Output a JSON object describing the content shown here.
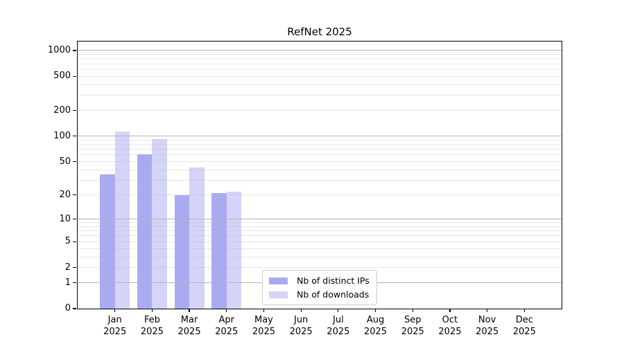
{
  "chart_data": {
    "type": "bar",
    "title": "RefNet 2025",
    "categories": [
      "Jan",
      "Feb",
      "Mar",
      "Apr",
      "May",
      "Jun",
      "Jul",
      "Aug",
      "Sep",
      "Oct",
      "Nov",
      "Dec"
    ],
    "year_label": "2025",
    "series": [
      {
        "key": "distinct-ips",
        "name": "Nb of distinct IPs",
        "color": "rgba(85,85,230,0.5)",
        "values": [
          35,
          61,
          20,
          21,
          0,
          0,
          0,
          0,
          0,
          0,
          0,
          0
        ]
      },
      {
        "key": "downloads",
        "name": "Nb of downloads",
        "color": "rgba(85,85,230,0.25)",
        "values": [
          113,
          92,
          43,
          22,
          0,
          0,
          0,
          0,
          0,
          0,
          0,
          0
        ]
      }
    ],
    "yscale": "log1p",
    "ylim": [
      0,
      1270
    ],
    "yticks": [
      0,
      1,
      2,
      5,
      10,
      20,
      50,
      100,
      200,
      500,
      1000
    ],
    "grid": {
      "major_values": [
        1,
        10,
        100,
        1000
      ],
      "minor_values": [
        2,
        3,
        4,
        5,
        6,
        7,
        8,
        9,
        20,
        30,
        40,
        50,
        60,
        70,
        80,
        90,
        200,
        300,
        400,
        500,
        600,
        700,
        800,
        900
      ]
    },
    "legend_position": "lower center",
    "colors": {
      "grid_major": "#b4b4b4",
      "grid_minor": "#e3e3e3",
      "spine": "#000000",
      "background": "#ffffff"
    }
  }
}
